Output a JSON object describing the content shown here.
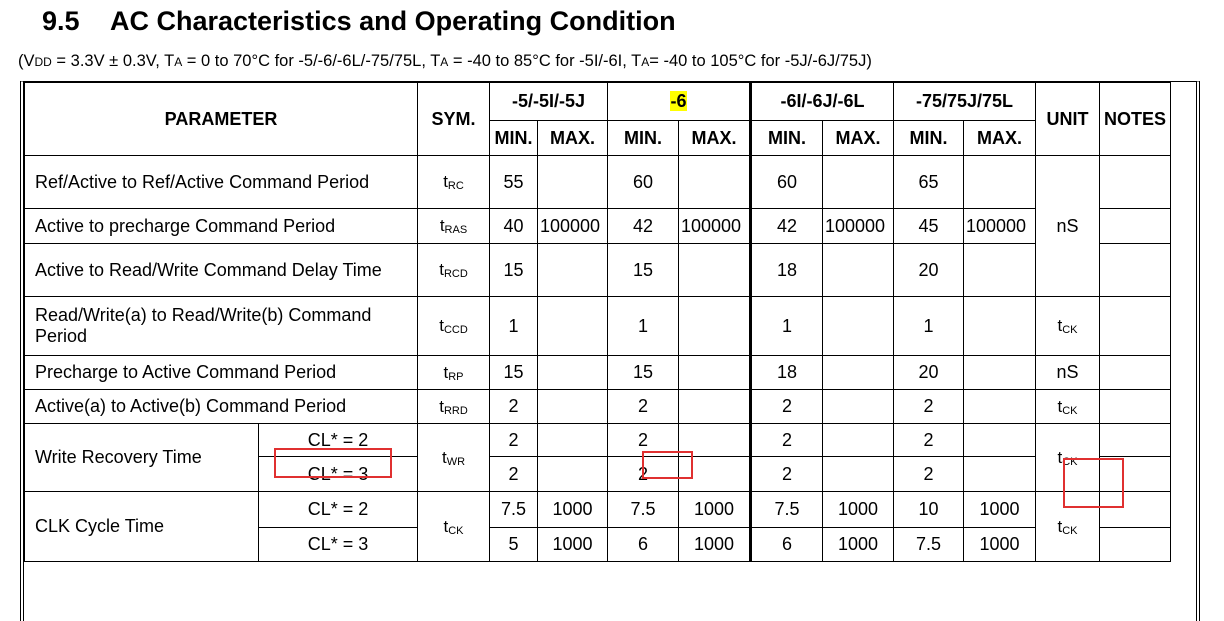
{
  "section": {
    "number": "9.5",
    "title": "AC Characteristics and Operating Condition"
  },
  "condition": {
    "p1": "(V",
    "p1_sub": "DD",
    "p2": " = 3.3V ± 0.3V, T",
    "p2_sub": "A",
    "p3": " = 0 to 70°C for -5/-6/-6L/-75/75L, T",
    "p3_sub": "A",
    "p4": " = -40 to 85°C for -5I/-6I, T",
    "p4_sub": "A",
    "p5": "= -40 to 105°C for -5J/-6J/75J)"
  },
  "header": {
    "parameter": "PARAMETER",
    "sym": "SYM.",
    "grades": [
      "-5/-5I/-5J",
      "-6",
      "-6I/-6J/-6L",
      "-75/75J/75L"
    ],
    "min": "MIN.",
    "max": "MAX.",
    "unit": "UNIT",
    "notes": "NOTES"
  },
  "rows": {
    "trc": {
      "param": "Ref/Active to Ref/Active Command Period",
      "sym": "t",
      "sub": "RC",
      "v": [
        "55",
        "",
        "60",
        "",
        "60",
        "",
        "65",
        ""
      ]
    },
    "tras": {
      "param": "Active to precharge Command Period",
      "sym": "t",
      "sub": "RAS",
      "v": [
        "40",
        "100000",
        "42",
        "100000",
        "42",
        "100000",
        "45",
        "100000"
      ]
    },
    "trcd": {
      "param": "Active to Read/Write Command Delay Time",
      "sym": "t",
      "sub": "RCD",
      "v": [
        "15",
        "",
        "15",
        "",
        "18",
        "",
        "20",
        ""
      ]
    },
    "tccd": {
      "param": "Read/Write(a) to Read/Write(b) Command Period",
      "sym": "t",
      "sub": "CCD",
      "v": [
        "1",
        "",
        "1",
        "",
        "1",
        "",
        "1",
        ""
      ]
    },
    "trp": {
      "param": "Precharge to Active Command Period",
      "sym": "t",
      "sub": "RP",
      "v": [
        "15",
        "",
        "15",
        "",
        "18",
        "",
        "20",
        ""
      ]
    },
    "trrd": {
      "param": "Active(a) to Active(b) Command Period",
      "sym": "t",
      "sub": "RRD",
      "v": [
        "2",
        "",
        "2",
        "",
        "2",
        "",
        "2",
        ""
      ]
    },
    "twr": {
      "param": "Write Recovery Time",
      "sym": "t",
      "sub": "WR",
      "cl2": "CL* = 2",
      "cl3": "CL* = 3",
      "v2": [
        "2",
        "",
        "2",
        "",
        "2",
        "",
        "2",
        ""
      ],
      "v3": [
        "2",
        "",
        "2",
        "",
        "2",
        "",
        "2",
        ""
      ]
    },
    "tck": {
      "param": "CLK Cycle Time",
      "sym": "t",
      "sub": "CK",
      "cl2": "CL* = 2",
      "cl3": "CL* = 3",
      "v2": [
        "7.5",
        "1000",
        "7.5",
        "1000",
        "7.5",
        "1000",
        "10",
        "1000"
      ],
      "v3": [
        "5",
        "1000",
        "6",
        "1000",
        "6",
        "1000",
        "7.5",
        "1000"
      ]
    }
  },
  "units": {
    "ns": "nS",
    "tck": "t",
    "tck_sub": "CK",
    "ns2": "nS",
    "tck2": "t",
    "tck2_sub": "CK",
    "tck3": "t",
    "tck3_sub": "CK",
    "tck4": "t",
    "tck4_sub": "CK"
  },
  "highlight_color": "#ffff00",
  "annotation_color": "#e03030"
}
